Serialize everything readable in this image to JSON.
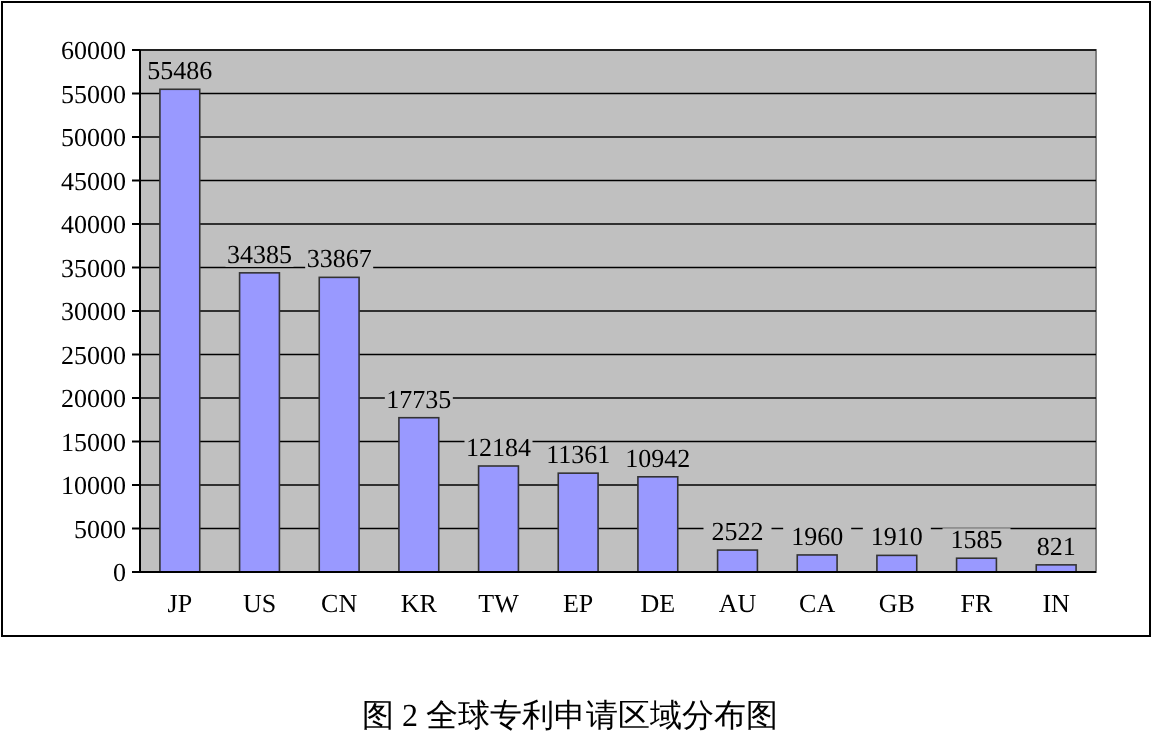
{
  "chart_data": {
    "type": "bar",
    "title": "图 2 全球专利申请区域分布图",
    "categories": [
      "JP",
      "US",
      "CN",
      "KR",
      "TW",
      "EP",
      "DE",
      "AU",
      "CA",
      "GB",
      "FR",
      "IN"
    ],
    "values": [
      55486,
      34385,
      33867,
      17735,
      12184,
      11361,
      10942,
      2522,
      1960,
      1910,
      1585,
      821
    ],
    "color": "#9999ff",
    "ylim": [
      0,
      60000
    ],
    "yticks": [
      0,
      5000,
      10000,
      15000,
      20000,
      25000,
      30000,
      35000,
      40000,
      45000,
      50000,
      55000,
      60000
    ],
    "grid": "y",
    "data_labels": true
  }
}
